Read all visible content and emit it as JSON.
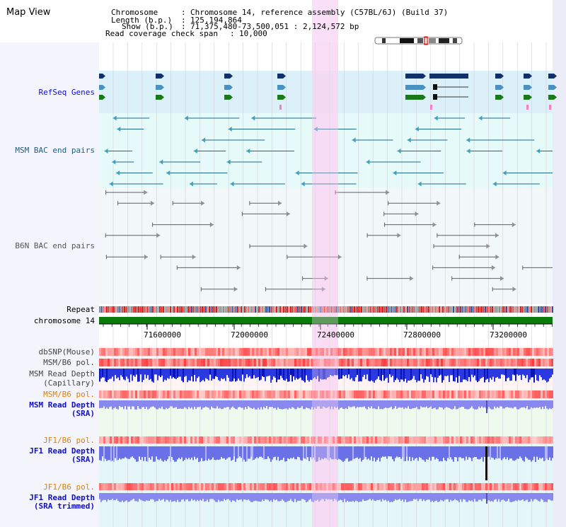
{
  "app_title": "Map View",
  "header": {
    "chromosome_key": "Chromosome",
    "chromosome_value": "Chromosome 14, reference assembly (C57BL/6J) (Build 37)",
    "length_key": "Length (b.p.)",
    "length_value": "125,194,864",
    "show_key": "Show (b.p.)",
    "show_value": "71,375,480-73,500,051 : 2,124,572 bp",
    "read_cov_key": "Read coverage check span",
    "read_cov_value": "10,000"
  },
  "track_labels": {
    "refseq": "RefSeq Genes",
    "msm_bac": "MSM BAC end pairs",
    "b6n_bac": "B6N BAC end pairs",
    "repeat": "Repeat",
    "chromosome": "chromosome 14",
    "dbsnp": "dbSNP(Mouse)",
    "msm_b6_pol_1": "MSM/B6 pol.",
    "msm_depth_cap": "MSM Read Depth",
    "msm_depth_cap_sub": "(Capillary)",
    "msm_b6_pol_2": "MSM/B6 pol.",
    "msm_depth_sra": "MSM Read Depth",
    "msm_depth_sra_sub": "(SRA)",
    "jf1_b6_pol_1": "JF1/B6 pol.",
    "jf1_depth_sra": "JF1 Read Depth",
    "jf1_depth_sra_sub": "(SRA)",
    "jf1_b6_pol_2": "JF1/B6 pol.",
    "jf1_depth_trim": "JF1 Read Depth",
    "jf1_depth_trim_sub": "(SRA trimmed)"
  },
  "axis_ticks": [
    "71600000",
    "72000000",
    "72400000",
    "72800000",
    "73200000"
  ],
  "colors": {
    "refseq_bg": "#dcf0fa",
    "msm_bac_bg": "#e6fafa",
    "b6n_bac_bg": "#f2f7fa",
    "highlight": "#f8d8f4",
    "chromosome_bar": "#0a7a0a",
    "label_blue": "#1010c8",
    "label_teal": "#206080",
    "label_orange": "#e08000",
    "depth_blue": "#2a3ae0",
    "depth_light": "#8888ee"
  }
}
